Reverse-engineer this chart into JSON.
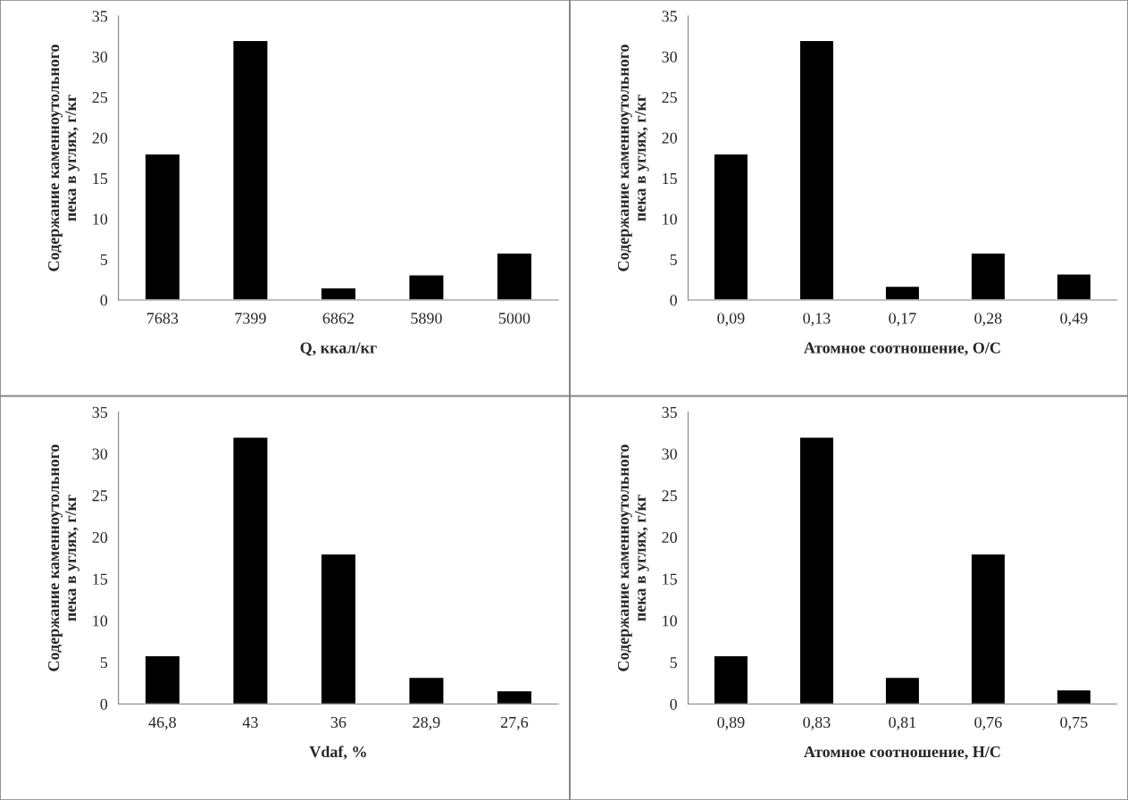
{
  "chart_data": [
    {
      "type": "bar",
      "categories": [
        "7683",
        "7399",
        "6862",
        "5890",
        "5000"
      ],
      "values": [
        18,
        32,
        1.5,
        3.1,
        5.8
      ],
      "color": "#000000",
      "xlabel": "Q, ккал/кг",
      "ylabel": "Содержание каменноутольного пека в углях, г/кг",
      "ylim": [
        0,
        35
      ],
      "yticks": [
        0,
        5,
        10,
        15,
        20,
        25,
        30,
        35
      ],
      "grid": false
    },
    {
      "type": "bar",
      "categories": [
        "0,09",
        "0,13",
        "0,17",
        "0,28",
        "0,49"
      ],
      "values": [
        18,
        32,
        1.7,
        5.8,
        3.2
      ],
      "color": "#000000",
      "xlabel": "Атомное соотношение, O/C",
      "ylabel": "Содержание каменноутольного пека в углях, г/кг",
      "ylim": [
        0,
        35
      ],
      "yticks": [
        0,
        5,
        10,
        15,
        20,
        25,
        30,
        35
      ],
      "grid": false
    },
    {
      "type": "bar",
      "categories": [
        "46,8",
        "43",
        "36",
        "28,9",
        "27,6"
      ],
      "values": [
        5.8,
        32,
        18,
        3.2,
        1.6
      ],
      "color": "#000000",
      "xlabel": "Vdaf, %",
      "ylabel": "Содержание каменноутольного пека в углях, г/кг",
      "ylim": [
        0,
        35
      ],
      "yticks": [
        0,
        5,
        10,
        15,
        20,
        25,
        30,
        35
      ],
      "grid": false
    },
    {
      "type": "bar",
      "categories": [
        "0,89",
        "0,83",
        "0,81",
        "0,76",
        "0,75"
      ],
      "values": [
        5.8,
        32,
        3.2,
        18,
        1.7
      ],
      "color": "#000000",
      "xlabel": "Атомное соотношение, H/C",
      "ylabel": "Содержание каменноутольного пека в углях, г/кг",
      "ylim": [
        0,
        35
      ],
      "yticks": [
        0,
        5,
        10,
        15,
        20,
        25,
        30,
        35
      ],
      "grid": false
    }
  ]
}
